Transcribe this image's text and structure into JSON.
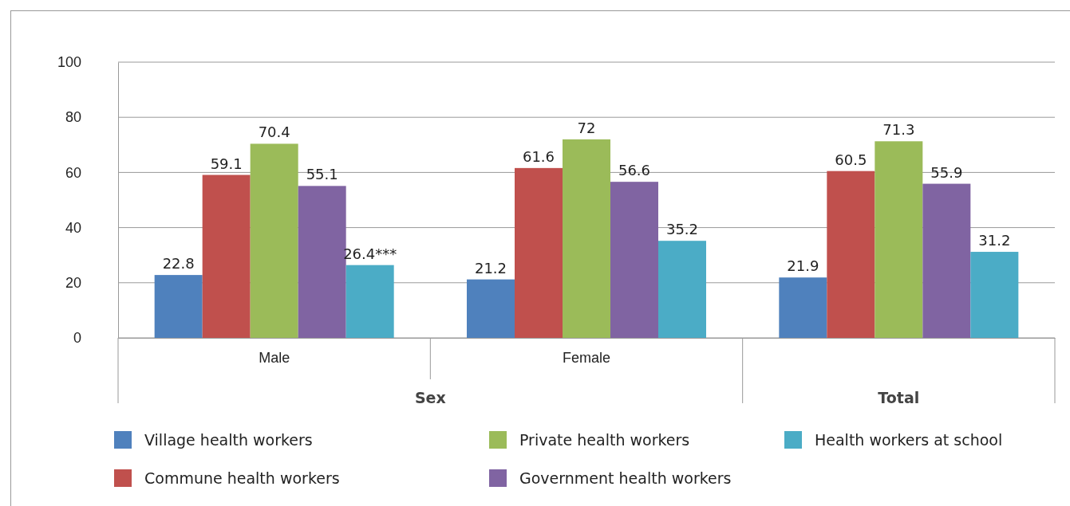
{
  "chart_data": {
    "type": "bar",
    "categories": [
      "Male",
      "Female",
      null
    ],
    "series": [
      {
        "name": "Village health workers",
        "color": "#4f81bd",
        "values": [
          22.8,
          21.2,
          21.9
        ],
        "value_labels": [
          "22.8",
          "21.2",
          "21.9"
        ]
      },
      {
        "name": "Commune health workers",
        "color": "#c0504d",
        "values": [
          59.1,
          61.6,
          60.5
        ],
        "value_labels": [
          "59.1",
          "61.6",
          "60.5"
        ]
      },
      {
        "name": "Private health workers",
        "color": "#9bbb59",
        "values": [
          70.4,
          72,
          71.3
        ],
        "value_labels": [
          "70.4",
          "72",
          "71.3"
        ]
      },
      {
        "name": "Government health workers",
        "color": "#8064a2",
        "values": [
          55.1,
          56.6,
          55.9
        ],
        "value_labels": [
          "55.1",
          "56.6",
          "55.9"
        ]
      },
      {
        "name": "Health workers at school",
        "color": "#4bacc6",
        "values": [
          26.4,
          35.2,
          31.2
        ],
        "value_labels": [
          "26.4***",
          "35.2",
          "31.2"
        ]
      }
    ],
    "ylim": [
      0,
      100
    ],
    "yticks": [
      0,
      20,
      40,
      60,
      80,
      100
    ],
    "grid": "y",
    "legend": "bottom",
    "annotations": [
      "Sex",
      "Total"
    ]
  }
}
